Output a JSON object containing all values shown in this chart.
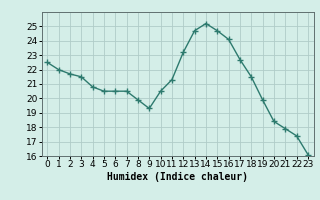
{
  "x": [
    0,
    1,
    2,
    3,
    4,
    5,
    6,
    7,
    8,
    9,
    10,
    11,
    12,
    13,
    14,
    15,
    16,
    17,
    18,
    19,
    20,
    21,
    22,
    23
  ],
  "y": [
    22.5,
    22.0,
    21.7,
    21.5,
    20.8,
    20.5,
    20.5,
    20.5,
    19.9,
    19.3,
    20.5,
    21.3,
    23.2,
    24.7,
    25.2,
    24.7,
    24.1,
    22.7,
    21.5,
    19.9,
    18.4,
    17.9,
    17.4,
    16.1
  ],
  "line_color": "#2d7a6e",
  "marker": "+",
  "marker_size": 4,
  "bg_color": "#d4eee8",
  "grid_color": "#b0ccc8",
  "xlabel": "Humidex (Indice chaleur)",
  "ylim": [
    16,
    26
  ],
  "xlim": [
    -0.5,
    23.5
  ],
  "yticks": [
    16,
    17,
    18,
    19,
    20,
    21,
    22,
    23,
    24,
    25
  ],
  "xticks": [
    0,
    1,
    2,
    3,
    4,
    5,
    6,
    7,
    8,
    9,
    10,
    11,
    12,
    13,
    14,
    15,
    16,
    17,
    18,
    19,
    20,
    21,
    22,
    23
  ],
  "xlabel_fontsize": 7,
  "tick_fontsize": 6.5
}
